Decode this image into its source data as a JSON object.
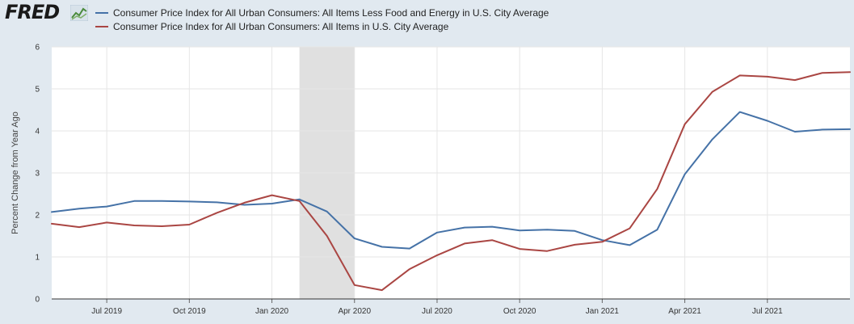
{
  "header": {
    "logo_text": "FRED"
  },
  "colors": {
    "core_line": "#4572a7",
    "all_items_line": "#aa4643",
    "recession_shade": "#e0e0e0",
    "grid": "#e6e6e6",
    "plot_bg": "#ffffff"
  },
  "chart_data": {
    "type": "line",
    "title": "",
    "xlabel": "",
    "ylabel": "Percent Change from Year Ago",
    "ylim": [
      0,
      6
    ],
    "yticks": [
      "0",
      "1",
      "2",
      "3",
      "4",
      "5",
      "6"
    ],
    "xlim": [
      "2019-05",
      "2021-10"
    ],
    "xticks": [
      {
        "date": "2019-07",
        "label": "Jul 2019"
      },
      {
        "date": "2019-10",
        "label": "Oct 2019"
      },
      {
        "date": "2020-01",
        "label": "Jan 2020"
      },
      {
        "date": "2020-04",
        "label": "Apr 2020"
      },
      {
        "date": "2020-07",
        "label": "Jul 2020"
      },
      {
        "date": "2020-10",
        "label": "Oct 2020"
      },
      {
        "date": "2021-01",
        "label": "Jan 2021"
      },
      {
        "date": "2021-04",
        "label": "Apr 2021"
      },
      {
        "date": "2021-07",
        "label": "Jul 2021"
      }
    ],
    "recession": {
      "start": "2020-02",
      "end": "2020-04"
    },
    "grid": true,
    "legend_position": "top-left",
    "x": [
      "2019-05",
      "2019-06",
      "2019-07",
      "2019-08",
      "2019-09",
      "2019-10",
      "2019-11",
      "2019-12",
      "2020-01",
      "2020-02",
      "2020-03",
      "2020-04",
      "2020-05",
      "2020-06",
      "2020-07",
      "2020-08",
      "2020-09",
      "2020-10",
      "2020-11",
      "2020-12",
      "2021-01",
      "2021-02",
      "2021-03",
      "2021-04",
      "2021-05",
      "2021-06",
      "2021-07",
      "2021-08",
      "2021-09",
      "2021-10"
    ],
    "series": [
      {
        "name": "Consumer Price Index for All Urban Consumers: All Items Less Food and Energy in U.S. City Average",
        "color": "#4572a7",
        "values": [
          2.07,
          2.15,
          2.2,
          2.33,
          2.33,
          2.32,
          2.3,
          2.24,
          2.27,
          2.37,
          2.08,
          1.44,
          1.24,
          1.2,
          1.58,
          1.7,
          1.72,
          1.63,
          1.65,
          1.62,
          1.4,
          1.28,
          1.65,
          2.97,
          3.8,
          4.45,
          4.24,
          3.98,
          4.03,
          4.04
        ]
      },
      {
        "name": "Consumer Price Index for All Urban Consumers: All Items in U.S. City Average",
        "color": "#aa4643",
        "values": [
          1.79,
          1.71,
          1.82,
          1.75,
          1.73,
          1.77,
          2.05,
          2.29,
          2.47,
          2.33,
          1.5,
          0.33,
          0.21,
          0.71,
          1.04,
          1.32,
          1.4,
          1.19,
          1.14,
          1.29,
          1.36,
          1.68,
          2.62,
          4.16,
          4.93,
          5.32,
          5.29,
          5.21,
          5.38,
          5.4
        ]
      }
    ]
  }
}
